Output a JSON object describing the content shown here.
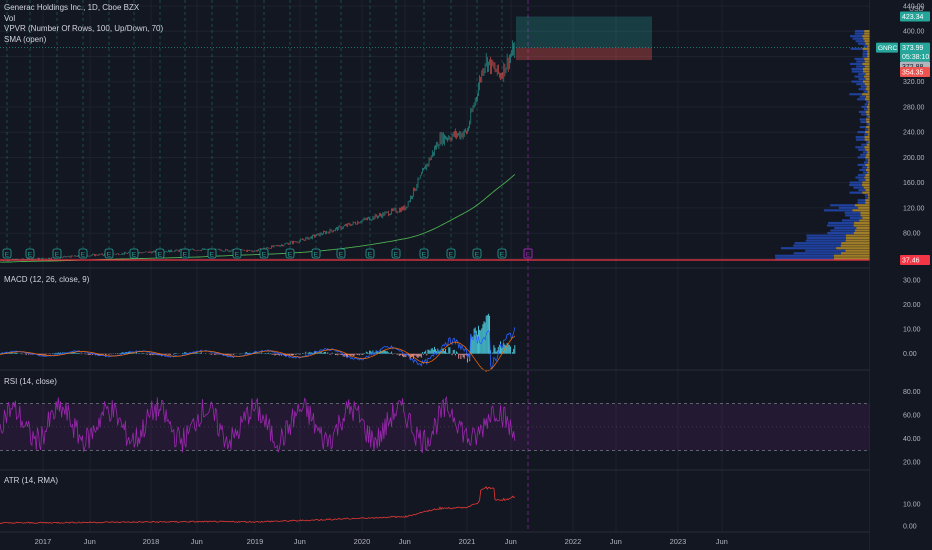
{
  "header": {
    "symbol_line": "Generac Holdings Inc., 1D, Cboe BZX",
    "vol_label": "Vol",
    "vpvr_label": "VPVR (Number Of Rows, 100, Up/Down, 70)",
    "sma_label": "SMA (open)"
  },
  "price_axis": {
    "currency": "USD",
    "ticks": [
      "440.00",
      "400.00",
      "360.00",
      "320.00",
      "280.00",
      "240.00",
      "200.00",
      "160.00",
      "120.00",
      "80.00",
      "40.00"
    ],
    "badges": {
      "target": "423.34",
      "ticker": "GNRC",
      "last": "373.99",
      "countdown": "05:38:10",
      "prev": "372.88",
      "stop": "354.35",
      "low_line": "37.46"
    }
  },
  "panes": {
    "macd": {
      "title": "MACD (12, 26, close, 9)",
      "ticks": [
        "30.00",
        "20.00",
        "10.00",
        "0.00"
      ]
    },
    "rsi": {
      "title": "RSI (14, close)",
      "ticks": [
        "80.00",
        "60.00",
        "40.00",
        "20.00"
      ]
    },
    "atr": {
      "title": "ATR (14, RMA)",
      "ticks": [
        "10.00",
        "0.00"
      ]
    }
  },
  "time_axis": [
    "2017",
    "Jun",
    "2018",
    "Jun",
    "2019",
    "Jun",
    "2020",
    "Jun",
    "2021",
    "Jun",
    "2022",
    "Jun",
    "2023",
    "Jun"
  ],
  "earnings_marker": "E",
  "colors": {
    "bg": "#131722",
    "grid": "#1e222d",
    "up": "#26a69a",
    "down": "#ef5350",
    "sma": "#4caf50",
    "rsi": "#9c27b0",
    "atr": "#e53935",
    "macd": "#2962ff",
    "signal": "#ff6d00",
    "target_zone": "#26a69a",
    "stop_zone": "#ef5350"
  },
  "chart_data": {
    "type": "line",
    "x": [
      "2016-09",
      "2017-01",
      "2017-06",
      "2018-01",
      "2018-06",
      "2019-01",
      "2019-06",
      "2020-01",
      "2020-06",
      "2020-10",
      "2021-01",
      "2021-03",
      "2021-05",
      "2021-06"
    ],
    "series": [
      {
        "values": [
          37,
          40,
          45,
          50,
          54,
          52,
          68,
          100,
          120,
          230,
          240,
          355,
          330,
          374
        ]
      }
    ],
    "ylim": [
      37.46,
      440
    ],
    "last_price": 373.99,
    "position": {
      "entry": 373.99,
      "target": 423.34,
      "stop": 354.35
    },
    "rsi_levels": [
      70,
      30
    ]
  }
}
